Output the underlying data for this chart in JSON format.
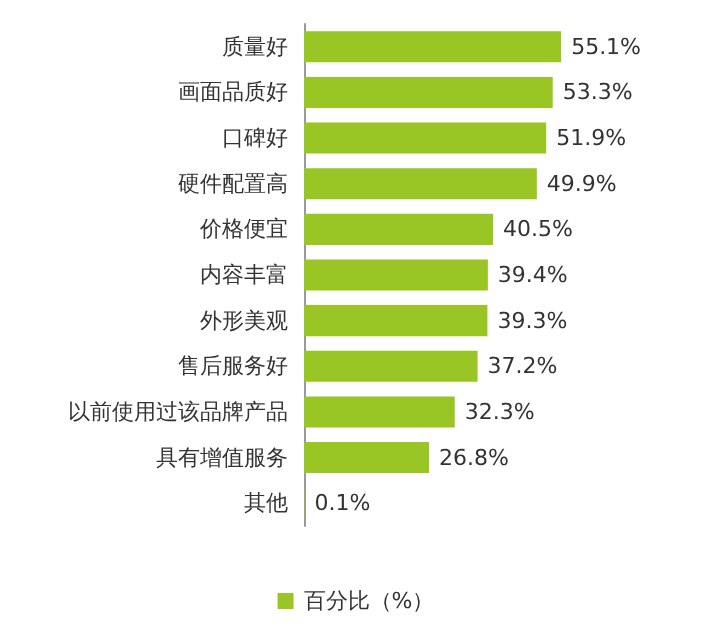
{
  "chart_data": {
    "type": "bar",
    "orientation": "horizontal",
    "categories": [
      "质量好",
      "画面品质好",
      "口碑好",
      "硬件配置高",
      "价格便宜",
      "内容丰富",
      "外形美观",
      "售后服务好",
      "以前使用过该品牌产品",
      "具有增值服务",
      "其他"
    ],
    "series": [
      {
        "name": "百分比（%）",
        "color": "#99c625",
        "values": [
          55.1,
          53.3,
          51.9,
          49.9,
          40.5,
          39.4,
          39.3,
          37.2,
          32.3,
          26.8,
          0.1
        ],
        "value_labels": [
          "55.1%",
          "53.3%",
          "51.9%",
          "49.9%",
          "40.5%",
          "39.4%",
          "39.3%",
          "37.2%",
          "32.3%",
          "26.8%",
          "0.1%"
        ]
      }
    ],
    "legend": "bottom"
  }
}
